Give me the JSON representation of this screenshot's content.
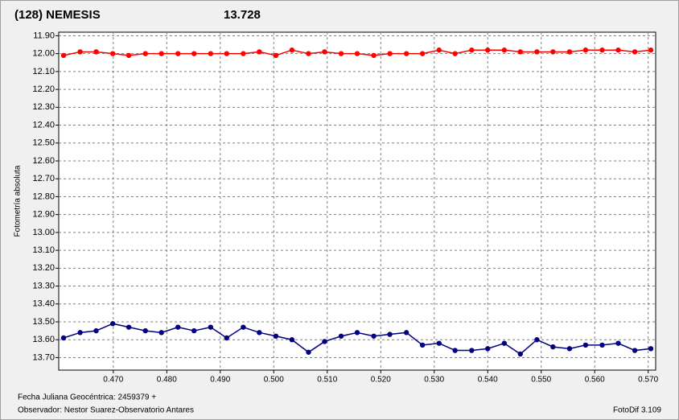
{
  "chart_data": {
    "type": "line",
    "title": "(128) NEMESIS",
    "title_color": "#ff0000",
    "subtitle": "13.728",
    "subtitle_color": "#000080",
    "y_label": "Fotometría absoluta",
    "x_label": "Fecha Juliana Geocéntrica: 2459379 +",
    "observer": "Observador: Nestor Suarez-Observatorio Antares",
    "software": "FotoDif 3.109",
    "grid": true,
    "y_inverted": true,
    "xlim": [
      0.4598,
      0.5714
    ],
    "ylim": [
      11.88,
      13.77
    ],
    "xticks": [
      {
        "value": 0.47,
        "label": "0.470"
      },
      {
        "value": 0.48,
        "label": "0.480"
      },
      {
        "value": 0.49,
        "label": "0.490"
      },
      {
        "value": 0.5,
        "label": "0.500"
      },
      {
        "value": 0.51,
        "label": "0.510"
      },
      {
        "value": 0.52,
        "label": "0.520"
      },
      {
        "value": 0.53,
        "label": "0.530"
      },
      {
        "value": 0.54,
        "label": "0.540"
      },
      {
        "value": 0.55,
        "label": "0.550"
      },
      {
        "value": 0.56,
        "label": "0.560"
      },
      {
        "value": 0.57,
        "label": "0.570"
      }
    ],
    "yticks": [
      {
        "value": 11.9,
        "label": "11.90"
      },
      {
        "value": 12.0,
        "label": "12.00"
      },
      {
        "value": 12.1,
        "label": "12.10"
      },
      {
        "value": 12.2,
        "label": "12.20"
      },
      {
        "value": 12.3,
        "label": "12.30"
      },
      {
        "value": 12.4,
        "label": "12.40"
      },
      {
        "value": 12.5,
        "label": "12.50"
      },
      {
        "value": 12.6,
        "label": "12.60"
      },
      {
        "value": 12.7,
        "label": "12.70"
      },
      {
        "value": 12.8,
        "label": "12.80"
      },
      {
        "value": 12.9,
        "label": "12.90"
      },
      {
        "value": 13.0,
        "label": "13.00"
      },
      {
        "value": 13.1,
        "label": "13.10"
      },
      {
        "value": 13.2,
        "label": "13.20"
      },
      {
        "value": 13.3,
        "label": "13.30"
      },
      {
        "value": 13.4,
        "label": "13.40"
      },
      {
        "value": 13.5,
        "label": "13.50"
      },
      {
        "value": 13.6,
        "label": "13.60"
      },
      {
        "value": 13.7,
        "label": "13.70"
      }
    ],
    "x": [
      0.4607,
      0.4638,
      0.4668,
      0.4699,
      0.4729,
      0.476,
      0.479,
      0.4821,
      0.4851,
      0.4882,
      0.4912,
      0.4943,
      0.4973,
      0.5004,
      0.5034,
      0.5065,
      0.5095,
      0.5126,
      0.5156,
      0.5187,
      0.5217,
      0.5248,
      0.5278,
      0.5309,
      0.5339,
      0.537,
      0.54,
      0.5431,
      0.5461,
      0.5492,
      0.5522,
      0.5553,
      0.5583,
      0.5614,
      0.5644,
      0.5675,
      0.5705
    ],
    "series": [
      {
        "color": "#ff0000",
        "values": [
          12.01,
          11.99,
          11.99,
          12.0,
          12.01,
          12.0,
          12.0,
          12.0,
          12.0,
          12.0,
          12.0,
          12.0,
          11.99,
          12.01,
          11.98,
          12.0,
          11.99,
          12.0,
          12.0,
          12.01,
          12.0,
          12.0,
          12.0,
          11.98,
          12.0,
          11.98,
          11.98,
          11.98,
          11.99,
          11.99,
          11.99,
          11.99,
          11.98,
          11.98,
          11.98,
          11.99,
          11.98
        ]
      },
      {
        "color": "#000080",
        "values": [
          13.59,
          13.56,
          13.55,
          13.51,
          13.53,
          13.55,
          13.56,
          13.53,
          13.55,
          13.53,
          13.59,
          13.53,
          13.56,
          13.58,
          13.6,
          13.67,
          13.61,
          13.58,
          13.56,
          13.58,
          13.57,
          13.56,
          13.63,
          13.62,
          13.66,
          13.66,
          13.65,
          13.62,
          13.68,
          13.6,
          13.64,
          13.65,
          13.63,
          13.63,
          13.62,
          13.66,
          13.65
        ]
      }
    ]
  }
}
